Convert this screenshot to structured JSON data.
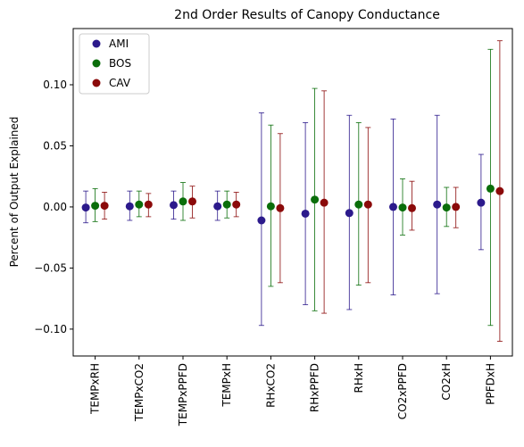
{
  "chart_data": {
    "type": "scatter",
    "title": "2nd Order Results of Canopy Conductance",
    "xlabel": "",
    "ylabel": "Percent of Output Explained",
    "ylim": [
      -0.122,
      0.146
    ],
    "yticks": [
      -0.1,
      -0.05,
      0.0,
      0.05,
      0.1
    ],
    "ytick_labels": [
      "−0.10",
      "−0.05",
      "0.00",
      "0.05",
      "0.10"
    ],
    "categories": [
      "TEMPxRH",
      "TEMPxCO2",
      "TEMPxPPFD",
      "TEMPxH",
      "RHxCO2",
      "RHxPPFD",
      "RHxH",
      "CO2xPPFD",
      "CO2xH",
      "PPFDxH"
    ],
    "legend_position": "top-left",
    "grid": false,
    "series": [
      {
        "name": "AMI",
        "color": "#2c1a8c",
        "values": [
          -0.0005,
          0.0005,
          0.0015,
          0.0005,
          -0.011,
          -0.0055,
          -0.005,
          0.0,
          0.002,
          0.0035
        ],
        "lower": [
          -0.013,
          -0.011,
          -0.01,
          -0.011,
          -0.097,
          -0.08,
          -0.084,
          -0.072,
          -0.071,
          -0.035
        ],
        "upper": [
          0.013,
          0.013,
          0.013,
          0.013,
          0.077,
          0.069,
          0.075,
          0.072,
          0.075,
          0.043
        ]
      },
      {
        "name": "BOS",
        "color": "#0a6e0a",
        "values": [
          0.001,
          0.002,
          0.0045,
          0.002,
          0.0005,
          0.006,
          0.002,
          -0.0005,
          -0.0005,
          0.015
        ],
        "lower": [
          -0.012,
          -0.008,
          -0.011,
          -0.009,
          -0.065,
          -0.085,
          -0.064,
          -0.023,
          -0.016,
          -0.097
        ],
        "upper": [
          0.015,
          0.013,
          0.02,
          0.013,
          0.067,
          0.097,
          0.069,
          0.023,
          0.016,
          0.129
        ]
      },
      {
        "name": "CAV",
        "color": "#8b0a0a",
        "values": [
          0.001,
          0.002,
          0.0045,
          0.002,
          -0.001,
          0.0035,
          0.002,
          -0.001,
          0.0,
          0.013
        ],
        "lower": [
          -0.01,
          -0.008,
          -0.009,
          -0.008,
          -0.062,
          -0.087,
          -0.062,
          -0.019,
          -0.017,
          -0.11
        ],
        "upper": [
          0.012,
          0.011,
          0.017,
          0.012,
          0.06,
          0.095,
          0.065,
          0.021,
          0.016,
          0.136
        ]
      }
    ]
  }
}
